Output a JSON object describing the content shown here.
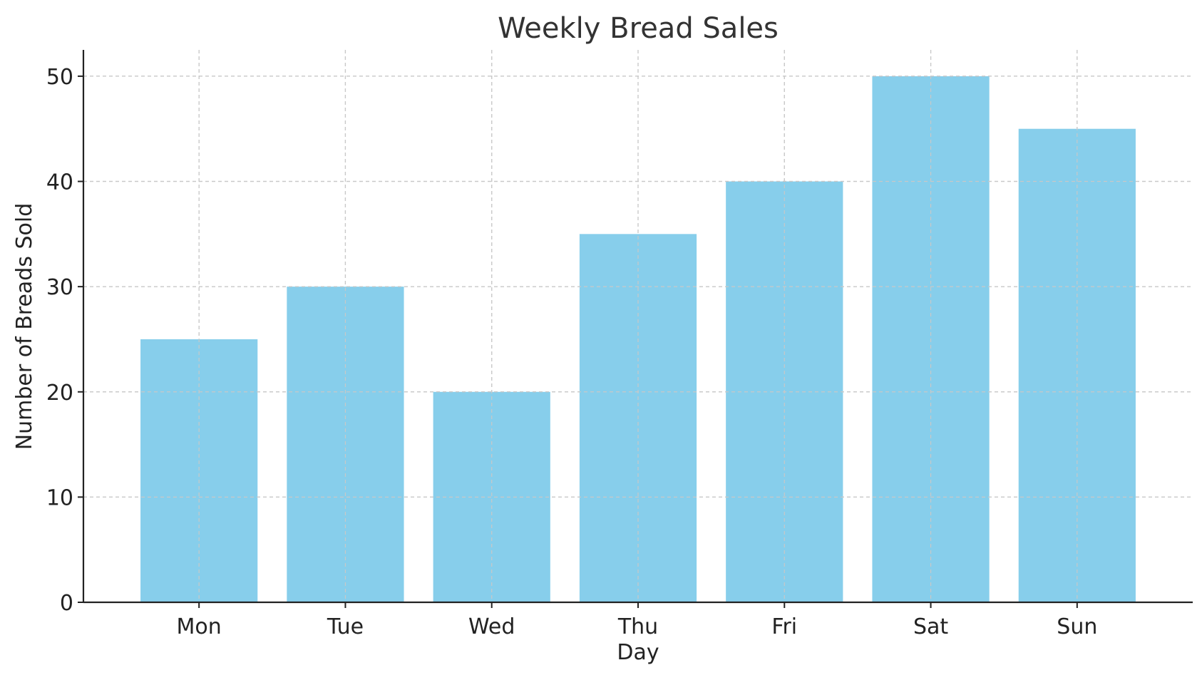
{
  "chart_data": {
    "type": "bar",
    "title": "Weekly Bread Sales",
    "xlabel": "Day",
    "ylabel": "Number of Breads Sold",
    "categories": [
      "Mon",
      "Tue",
      "Wed",
      "Thu",
      "Fri",
      "Sat",
      "Sun"
    ],
    "values": [
      25,
      30,
      20,
      35,
      40,
      50,
      45
    ],
    "ylim": [
      0,
      52.5
    ],
    "yticks": [
      0,
      10,
      20,
      30,
      40,
      50
    ],
    "grid": true,
    "bar_color": "#87CEEB"
  }
}
